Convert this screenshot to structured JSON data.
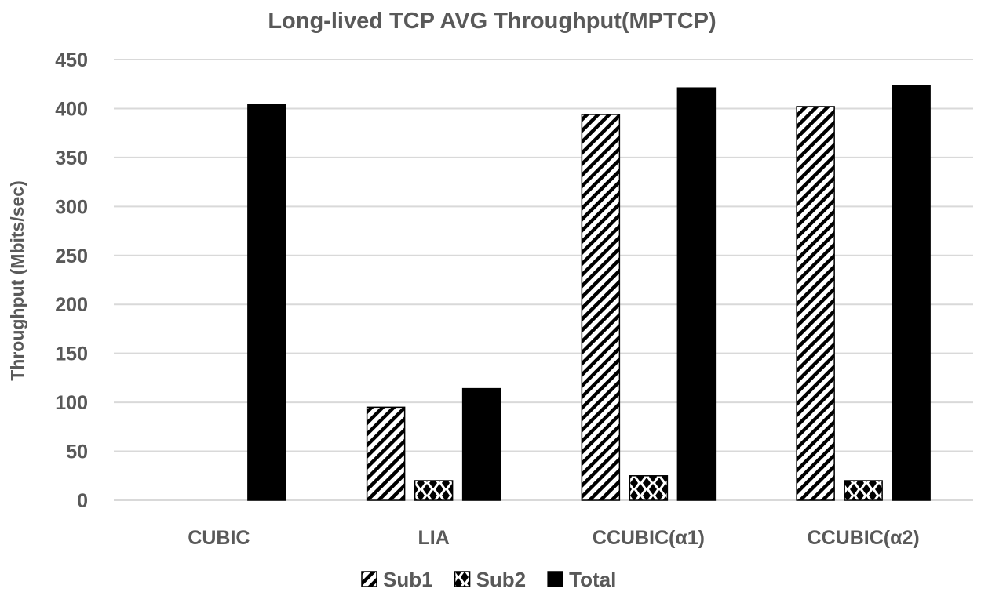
{
  "chart_data": {
    "type": "bar",
    "title": "Long-lived TCP AVG Throughput(MPTCP)",
    "xlabel": "",
    "ylabel": "Throughput (Mbits/sec)",
    "ylim": [
      0,
      450
    ],
    "yticks": [
      0,
      50,
      100,
      150,
      200,
      250,
      300,
      350,
      400,
      450
    ],
    "grid": true,
    "legend_position": "bottom",
    "categories": [
      "CUBIC",
      "LIA",
      "CCUBIC(α1)",
      "CCUBIC(α2)"
    ],
    "series": [
      {
        "name": "Sub1",
        "pattern": "diagonal-stripes",
        "values": [
          0,
          95,
          394,
          402
        ]
      },
      {
        "name": "Sub2",
        "pattern": "checker",
        "values": [
          0,
          20,
          25,
          20
        ]
      },
      {
        "name": "Total",
        "pattern": "solid",
        "color": "#000000",
        "values": [
          404,
          114,
          421,
          423
        ]
      }
    ]
  }
}
